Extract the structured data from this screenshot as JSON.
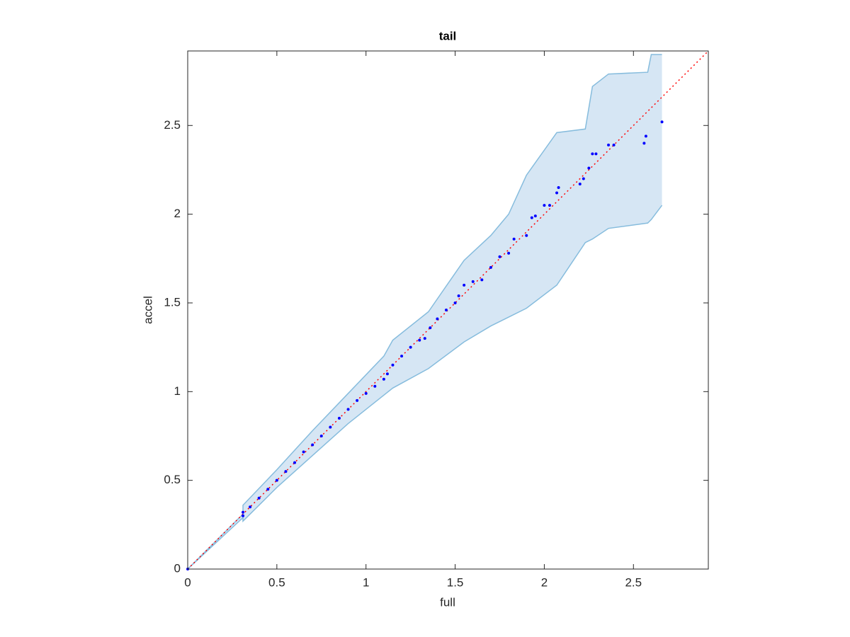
{
  "chart_data": {
    "type": "scatter",
    "title": "tail",
    "x_label": "full",
    "y_label": "accel",
    "xlim": [
      0,
      2.92
    ],
    "ylim": [
      0,
      2.92
    ],
    "xticks": [
      0,
      0.5,
      1,
      1.5,
      2,
      2.5
    ],
    "yticks": [
      0,
      0.5,
      1,
      1.5,
      2,
      2.5
    ],
    "band": {
      "color": "#d6e6f4",
      "edge_color": "#86bcdd",
      "x": [
        0,
        0.31,
        0.31,
        0.5,
        0.7,
        0.9,
        1.1,
        1.15,
        1.35,
        1.55,
        1.7,
        1.8,
        1.9,
        2.07,
        2.23,
        2.27,
        2.36,
        2.58,
        2.6,
        2.66
      ],
      "upper": [
        0,
        0.31,
        0.36,
        0.56,
        0.78,
        0.99,
        1.2,
        1.29,
        1.45,
        1.74,
        1.88,
        2.0,
        2.22,
        2.46,
        2.48,
        2.72,
        2.79,
        2.8,
        2.9,
        2.9
      ],
      "lower": [
        0,
        0.29,
        0.27,
        0.46,
        0.64,
        0.82,
        0.98,
        1.02,
        1.13,
        1.28,
        1.37,
        1.42,
        1.47,
        1.6,
        1.84,
        1.86,
        1.92,
        1.95,
        1.97,
        2.05
      ]
    },
    "reference_line": {
      "color": "#ff0000",
      "x": [
        0,
        2.92
      ],
      "y": [
        0,
        2.92
      ]
    },
    "points": {
      "color": "#0000ff",
      "x": [
        0,
        0.31,
        0.31,
        0.35,
        0.4,
        0.45,
        0.5,
        0.55,
        0.6,
        0.65,
        0.7,
        0.75,
        0.8,
        0.85,
        0.9,
        0.95,
        1.0,
        1.05,
        1.1,
        1.12,
        1.15,
        1.2,
        1.25,
        1.3,
        1.33,
        1.36,
        1.4,
        1.45,
        1.5,
        1.52,
        1.55,
        1.6,
        1.65,
        1.7,
        1.75,
        1.8,
        1.83,
        1.9,
        1.93,
        1.95,
        2.0,
        2.03,
        2.07,
        2.08,
        2.2,
        2.22,
        2.25,
        2.27,
        2.29,
        2.36,
        2.39,
        2.56,
        2.57,
        2.66
      ],
      "y": [
        0,
        0.3,
        0.32,
        0.35,
        0.4,
        0.45,
        0.5,
        0.55,
        0.6,
        0.66,
        0.7,
        0.75,
        0.8,
        0.85,
        0.9,
        0.95,
        0.99,
        1.03,
        1.07,
        1.1,
        1.15,
        1.2,
        1.25,
        1.29,
        1.3,
        1.36,
        1.41,
        1.46,
        1.5,
        1.54,
        1.6,
        1.62,
        1.63,
        1.7,
        1.76,
        1.78,
        1.86,
        1.88,
        1.98,
        1.99,
        2.05,
        2.05,
        2.12,
        2.15,
        2.17,
        2.2,
        2.26,
        2.34,
        2.34,
        2.39,
        2.39,
        2.4,
        2.44,
        2.52
      ]
    }
  }
}
